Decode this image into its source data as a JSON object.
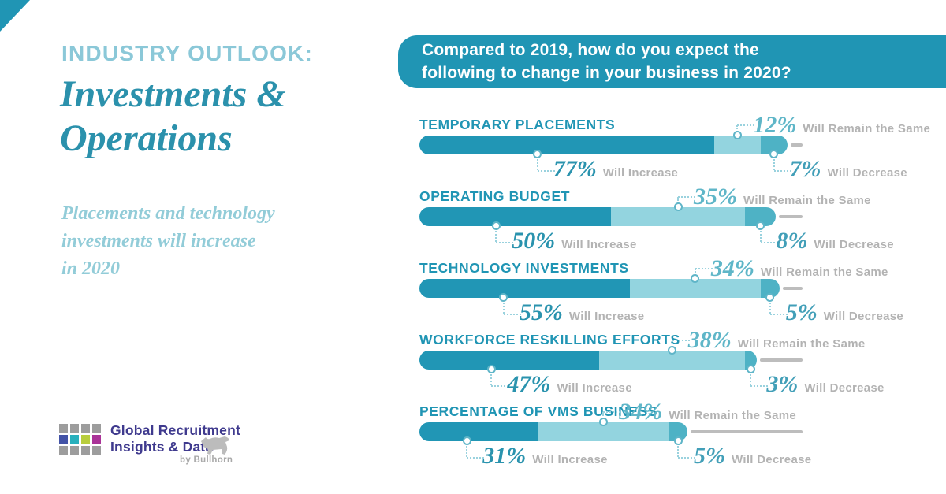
{
  "page": {
    "kicker": "INDUSTRY OUTLOOK:",
    "title": "Investments &\nOperations",
    "subtitle": "Placements and technology\ninvestments will increase\nin 2020"
  },
  "header": {
    "question": "Compared to 2019, how do you expect the\nfollowing to change in your business in 2020?",
    "banner_color": "#2095b4"
  },
  "chart_data": {
    "type": "bar",
    "orientation": "horizontal_stacked",
    "unit": "%",
    "x_max": 100,
    "categories": [
      "TEMPORARY PLACEMENTS",
      "OPERATING BUDGET",
      "TECHNOLOGY INVESTMENTS",
      "WORKFORCE RESKILLING EFFORTS",
      "PERCENTAGE OF VMS BUSINESS"
    ],
    "series": [
      {
        "name": "Will Increase",
        "values": [
          77,
          50,
          55,
          47,
          31
        ],
        "bar_color": "#2196b5",
        "text_color": "#2a93ae"
      },
      {
        "name": "Will Remain the Same",
        "values": [
          12,
          35,
          34,
          38,
          34
        ],
        "bar_color": "#93d4df",
        "text_color": "#5fb6c8"
      },
      {
        "name": "Will Decrease",
        "values": [
          7,
          8,
          5,
          3,
          5
        ],
        "bar_color": "#4eb2c5",
        "text_color": "#429fb8"
      }
    ],
    "track_color": "#bdbdbd",
    "legend_position": "inline-callouts",
    "grid": false
  },
  "branding": {
    "logo_text": "Global Recruitment\nInsights & Data",
    "byline": "by Bullhorn",
    "grid_colors": [
      "#9d9d9d",
      "#9d9d9d",
      "#9d9d9d",
      "#9d9d9d",
      "#4353a7",
      "#29b0bd",
      "#b8cd3d",
      "#aa3398",
      "#9d9d9d",
      "#9d9d9d",
      "#9d9d9d",
      "#9d9d9d"
    ]
  }
}
